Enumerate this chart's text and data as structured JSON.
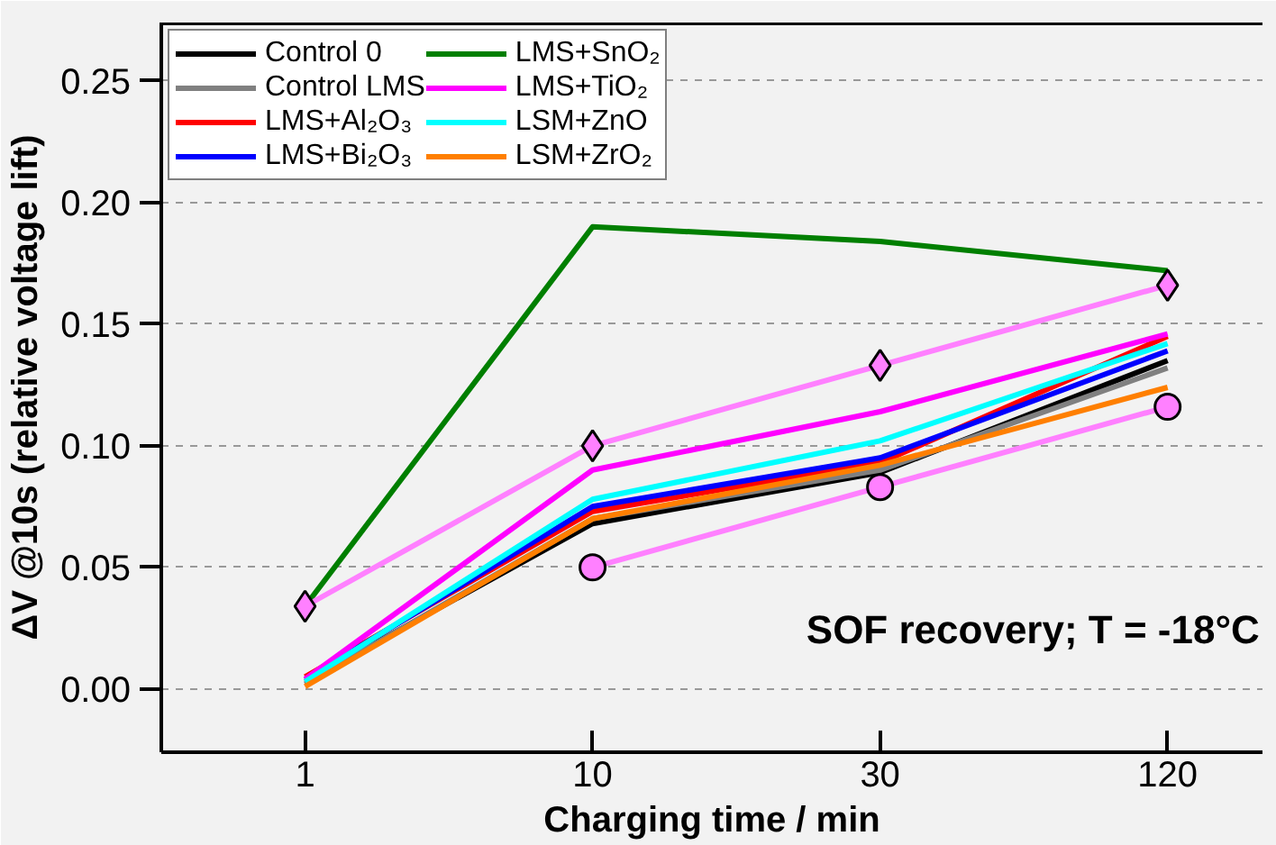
{
  "chart_data": {
    "type": "line",
    "xlabel": "Charging time / min",
    "ylabel": "ΔV @10s (relative voltage lift)",
    "categories": [
      "1",
      "10",
      "30",
      "120"
    ],
    "ylim": [
      -0.026,
      0.274
    ],
    "yticks": [
      {
        "value": 0,
        "label": "0.00"
      },
      {
        "value": 0.05,
        "label": "0.05"
      },
      {
        "value": 0.1,
        "label": "0.10"
      },
      {
        "value": 0.15,
        "label": "0.15"
      },
      {
        "value": 0.2,
        "label": "0.20"
      },
      {
        "value": 0.25,
        "label": "0.25"
      }
    ],
    "grid": "y",
    "legend": "top left",
    "line_style": "solid",
    "annotations": [
      "SOF recovery; T = -18°C"
    ],
    "series": [
      {
        "name": "LMS+SnO₂",
        "color": "#007f00",
        "values": [
          0.034,
          0.19,
          0.184,
          0.172
        ]
      },
      {
        "color": "#ff80ff",
        "marker": "diamond",
        "values": [
          0.034,
          0.1,
          0.133,
          0.166
        ]
      },
      {
        "color": "#ff80ff",
        "marker": "circle",
        "values": [
          null,
          0.05,
          0.083,
          0.116
        ]
      },
      {
        "name": "Control 0",
        "color": "#000000",
        "values": [
          0.003,
          0.068,
          0.089,
          0.135
        ]
      },
      {
        "name": "Control LMS",
        "color": "#808080",
        "values": [
          0.002,
          0.07,
          0.09,
          0.132
        ]
      },
      {
        "name": "LMS+Al₂O₃",
        "color": "#ff0000",
        "values": [
          0.005,
          0.073,
          0.093,
          0.145
        ]
      },
      {
        "name": "LMS+Bi₂O₃",
        "color": "#0000ff",
        "values": [
          0.004,
          0.075,
          0.095,
          0.139
        ]
      },
      {
        "name": "LMS+TiO₂",
        "color": "#ff00ff",
        "values": [
          0.004,
          0.09,
          0.114,
          0.146
        ]
      },
      {
        "name": "LSM+ZnO",
        "color": "#00ffff",
        "values": [
          0.003,
          0.078,
          0.102,
          0.142
        ]
      },
      {
        "name": "LSM+ZrO₂",
        "color": "#ff7f00",
        "values": [
          0.001,
          0.07,
          0.092,
          0.124
        ]
      }
    ]
  }
}
